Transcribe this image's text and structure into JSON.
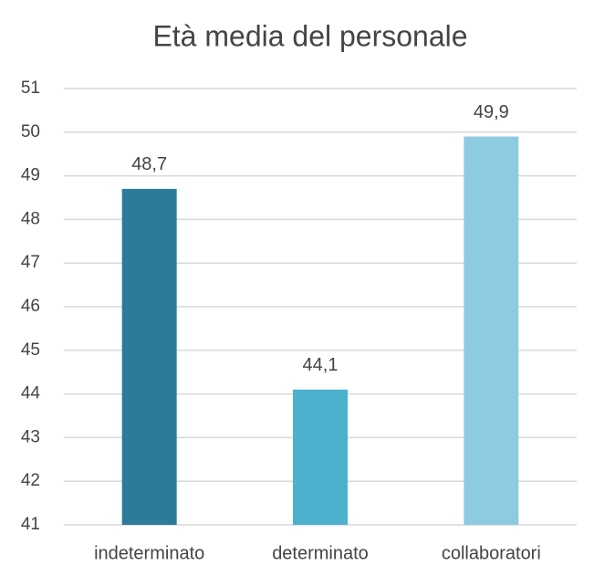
{
  "chart_data": {
    "type": "bar",
    "title": "Età media del personale",
    "categories": [
      "indeterminato",
      "determinato",
      "collaboratori"
    ],
    "values": [
      48.7,
      44.1,
      49.9
    ],
    "value_labels": [
      "48,7",
      "44,1",
      "49,9"
    ],
    "colors": [
      "#2b7c98",
      "#4bb1cd",
      "#8ecbe0"
    ],
    "ylim": [
      41,
      51
    ],
    "yticks": [
      41,
      42,
      43,
      44,
      45,
      46,
      47,
      48,
      49,
      50,
      51
    ],
    "grid": true
  }
}
